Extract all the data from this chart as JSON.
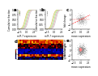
{
  "panel_labels": [
    "a",
    "b",
    "c",
    "d",
    "e"
  ],
  "label_fontsize": 4,
  "fig_bg": "#ffffff",
  "panel_a": {
    "xlabel": "miR-7 expression",
    "ylabel": "Cumulative fraction",
    "line_colors": [
      "#d4c060",
      "#c8e080",
      "#a0d8a0",
      "#f0a0b0",
      "#c8c8c8"
    ],
    "offsets": [
      -0.6,
      -0.3,
      0.0,
      0.3,
      0.6
    ],
    "xlim": [
      -3,
      3
    ],
    "ylim": [
      0,
      1
    ]
  },
  "panel_b": {
    "xlabel": "miR-7 expression",
    "ylabel": "Cumulative fraction",
    "line_colors": [
      "#d4c060",
      "#c8e080",
      "#a0d8a0",
      "#f0a0b0",
      "#c8c8c8"
    ],
    "offsets": [
      -0.5,
      -0.2,
      0.1,
      0.4,
      0.7
    ],
    "xlim": [
      -3,
      3
    ],
    "ylim": [
      0,
      1
    ]
  },
  "panel_c": {
    "xlabel": "mean expression",
    "ylabel": "fold change",
    "xlim": [
      -3,
      3
    ],
    "ylim": [
      -2,
      2
    ],
    "dot_color": "#aaaaaa",
    "line_color": "#ff0000"
  },
  "panel_d": {
    "heatmap_bg": "#000080",
    "band_colors": [
      "#ffff00",
      "#ff4400",
      "#ff4400",
      "#008800",
      "#0000aa",
      "#0000aa",
      "#ffff00",
      "#ff8800"
    ],
    "colorbar_label": ""
  },
  "panel_e": {
    "xlabel": "mean expression",
    "ylabel": "fold change",
    "xlim": [
      -3,
      3
    ],
    "ylim": [
      -2,
      2
    ],
    "dot_color": "#888888",
    "highlight_color": "#ff8888"
  }
}
